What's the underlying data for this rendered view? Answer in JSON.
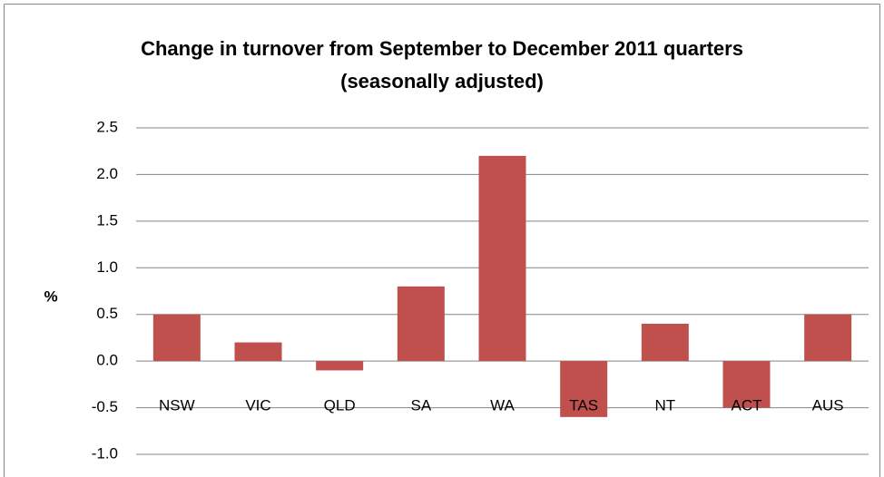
{
  "chart_data": {
    "type": "bar",
    "title": "Change in turnover from September to December 2011 quarters (seasonally adjusted)",
    "y_label": "%",
    "categories": [
      "NSW",
      "VIC",
      "QLD",
      "SA",
      "WA",
      "TAS",
      "NT",
      "ACT",
      "AUS"
    ],
    "values": [
      0.5,
      0.2,
      -0.1,
      0.8,
      2.2,
      -0.6,
      0.4,
      -0.5,
      0.5
    ],
    "color": "#c0504d",
    "ylim": [
      -1.0,
      2.5
    ],
    "yticks": [
      {
        "value": -1,
        "label": "-1.0"
      },
      -0.5,
      {
        "value": 0,
        "label": "0.0"
      },
      0.5,
      {
        "value": 1,
        "label": "1.0"
      },
      1.5,
      {
        "value": 2,
        "label": "2.0"
      },
      2.5
    ],
    "grid": true
  }
}
